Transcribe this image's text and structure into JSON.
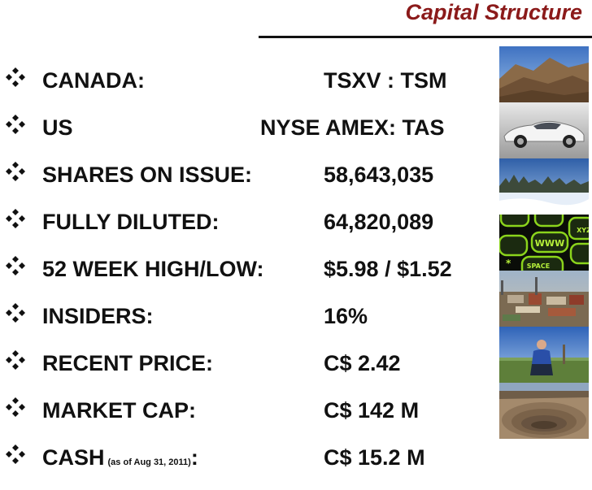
{
  "title": "Capital Structure",
  "rows": [
    {
      "label": "CANADA:",
      "note": "",
      "value": "TSXV : TSM"
    },
    {
      "label": "US",
      "note": "",
      "value": "NYSE AMEX: TAS"
    },
    {
      "label": "SHARES ON ISSUE:",
      "note": "",
      "value": "58,643,035"
    },
    {
      "label": "FULLY DILUTED:",
      "note": "",
      "value": "64,820,089"
    },
    {
      "label": "52 WEEK HIGH/LOW:",
      "note": "",
      "value": "$5.98 / $1.52"
    },
    {
      "label": "INSIDERS:",
      "note": "",
      "value": "16%"
    },
    {
      "label": "RECENT PRICE:",
      "note": "",
      "value": "C$ 2.42"
    },
    {
      "label": "MARKET CAP:",
      "note": "",
      "value": "C$ 142 M"
    },
    {
      "label": "CASH",
      "note": "(as of Aug 31, 2011)",
      "suffix": ":",
      "value": "C$ 15.2 M"
    }
  ],
  "photos": [
    {
      "icon": "mountain-hills-photo"
    },
    {
      "icon": "electric-car-photo"
    },
    {
      "icon": "snowy-forest-photo"
    },
    {
      "icon": "green-keypad-photo",
      "keys": [
        "WWW",
        "SPACE",
        "XYZ"
      ]
    },
    {
      "icon": "industrial-plant-photo"
    },
    {
      "icon": "man-crouching-field-photo"
    },
    {
      "icon": "open-pit-mine-photo"
    }
  ],
  "colors": {
    "title": "#8b1a1a",
    "text": "#111111",
    "rule": "#111111"
  }
}
